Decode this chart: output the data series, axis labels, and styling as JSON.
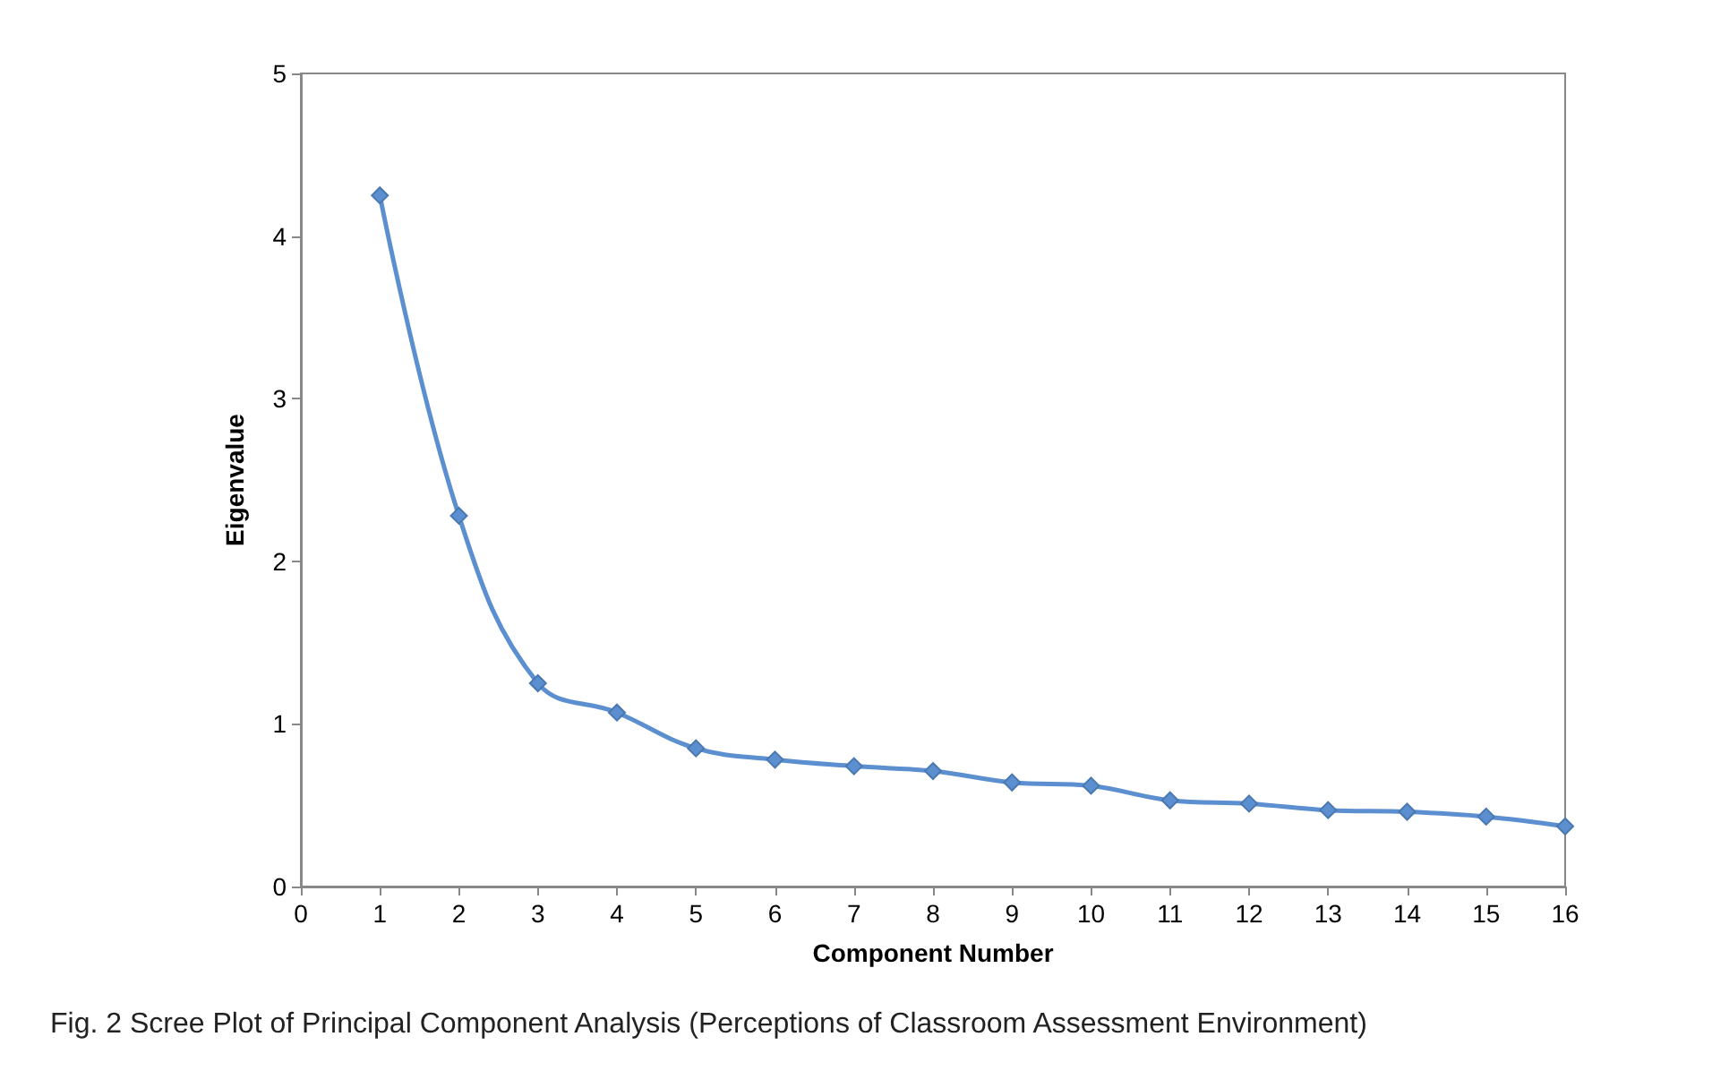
{
  "chart_data": {
    "type": "line",
    "xlabel": "Component Number",
    "ylabel": "Eigenvalue",
    "x": [
      1,
      2,
      3,
      4,
      5,
      6,
      7,
      8,
      9,
      10,
      11,
      12,
      13,
      14,
      15,
      16
    ],
    "series": [
      {
        "color": "#5b8fd0",
        "values": [
          4.25,
          2.28,
          1.25,
          1.07,
          0.85,
          0.78,
          0.74,
          0.71,
          0.64,
          0.62,
          0.53,
          0.51,
          0.47,
          0.46,
          0.43,
          0.37
        ]
      }
    ],
    "xlim": [
      0,
      16
    ],
    "xticks": [
      0,
      1,
      2,
      3,
      4,
      5,
      6,
      7,
      8,
      9,
      10,
      11,
      12,
      13,
      14,
      15,
      16
    ],
    "ylim": [
      0,
      5
    ],
    "yticks": [
      0,
      1,
      2,
      3,
      4,
      5
    ],
    "grid": false,
    "marker": "diamond",
    "line_style": "solid",
    "annotations": [
      "Fig. 2 Scree Plot of Principal Component Analysis (Perceptions of Classroom Assessment Environment)"
    ]
  }
}
